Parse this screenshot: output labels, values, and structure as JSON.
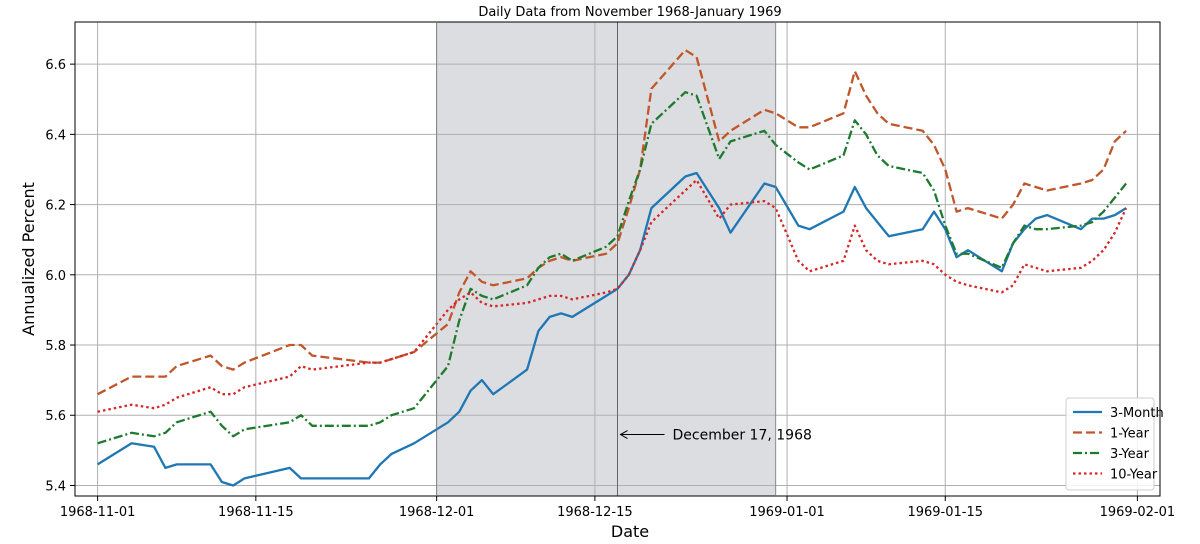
{
  "chart_data": {
    "type": "line",
    "title": "Daily Data from November 1968-January 1969",
    "xlabel": "Date",
    "ylabel": "Annualized Percent",
    "xlim": [
      "1968-10-30",
      "1969-02-03"
    ],
    "ylim": [
      5.37,
      6.72
    ],
    "x_ticks": [
      "1968-11-01",
      "1968-11-15",
      "1968-12-01",
      "1968-12-15",
      "1969-01-01",
      "1969-01-15",
      "1969-02-01"
    ],
    "y_ticks": [
      5.4,
      5.6,
      5.8,
      6.0,
      6.2,
      6.4,
      6.6
    ],
    "y_tick_labels": [
      "5.4",
      "5.6",
      "5.8",
      "6.0",
      "6.2",
      "6.4",
      "6.6"
    ],
    "grid": true,
    "legend_position": "lower-right",
    "shaded_region": {
      "start": "1968-12-01",
      "end": "1968-12-31",
      "color": "#dcdde0"
    },
    "vertical_line": {
      "date": "1968-12-17",
      "color": "#666666"
    },
    "annotation": {
      "text": "December 17, 1968",
      "date": "1968-12-17",
      "value": 5.545
    },
    "x": [
      "1968-11-01",
      "1968-11-04",
      "1968-11-06",
      "1968-11-07",
      "1968-11-08",
      "1968-11-11",
      "1968-11-12",
      "1968-11-13",
      "1968-11-14",
      "1968-11-18",
      "1968-11-19",
      "1968-11-20",
      "1968-11-25",
      "1968-11-26",
      "1968-11-27",
      "1968-11-29",
      "1968-12-02",
      "1968-12-03",
      "1968-12-04",
      "1968-12-05",
      "1968-12-06",
      "1968-12-09",
      "1968-12-10",
      "1968-12-11",
      "1968-12-12",
      "1968-12-13",
      "1968-12-16",
      "1968-12-17",
      "1968-12-18",
      "1968-12-19",
      "1968-12-20",
      "1968-12-23",
      "1968-12-24",
      "1968-12-26",
      "1968-12-27",
      "1968-12-30",
      "1968-12-31",
      "1969-01-02",
      "1969-01-03",
      "1969-01-06",
      "1969-01-07",
      "1969-01-08",
      "1969-01-09",
      "1969-01-10",
      "1969-01-13",
      "1969-01-14",
      "1969-01-15",
      "1969-01-16",
      "1969-01-17",
      "1969-01-20",
      "1969-01-21",
      "1969-01-22",
      "1969-01-23",
      "1969-01-24",
      "1969-01-27",
      "1969-01-28",
      "1969-01-29",
      "1969-01-30",
      "1969-01-31"
    ],
    "series": [
      {
        "name": "3-Month",
        "color": "#1f77b4",
        "dash": "solid",
        "values": [
          5.46,
          5.52,
          5.51,
          5.45,
          5.46,
          5.46,
          5.41,
          5.4,
          5.42,
          5.45,
          5.42,
          5.42,
          5.42,
          5.46,
          5.49,
          5.52,
          5.58,
          5.61,
          5.67,
          5.7,
          5.66,
          5.73,
          5.84,
          5.88,
          5.89,
          5.88,
          5.94,
          5.96,
          6.0,
          6.07,
          6.19,
          6.28,
          6.29,
          6.19,
          6.12,
          6.26,
          6.25,
          6.14,
          6.13,
          6.18,
          6.25,
          6.19,
          6.15,
          6.11,
          6.13,
          6.18,
          6.13,
          6.05,
          6.07,
          6.01,
          6.09,
          6.13,
          6.16,
          6.17,
          6.13,
          6.16,
          6.16,
          6.17,
          6.19
        ]
      },
      {
        "name": "1-Year",
        "color": "#c1562a",
        "dash": "dashed",
        "values": [
          5.66,
          5.71,
          5.71,
          5.71,
          5.74,
          5.77,
          5.74,
          5.73,
          5.75,
          5.8,
          5.8,
          5.77,
          5.75,
          5.75,
          5.76,
          5.78,
          5.86,
          5.95,
          6.01,
          5.98,
          5.97,
          5.99,
          6.02,
          6.04,
          6.05,
          6.04,
          6.06,
          6.09,
          6.19,
          6.3,
          6.53,
          6.64,
          6.62,
          6.38,
          6.41,
          6.47,
          6.46,
          6.42,
          6.42,
          6.46,
          6.58,
          6.51,
          6.46,
          6.43,
          6.41,
          6.37,
          6.3,
          6.18,
          6.19,
          6.16,
          6.2,
          6.26,
          6.25,
          6.24,
          6.26,
          6.27,
          6.3,
          6.38,
          6.41
        ]
      },
      {
        "name": "3-Year",
        "color": "#1e7a2e",
        "dash": "dashdot",
        "values": [
          5.52,
          5.55,
          5.54,
          5.55,
          5.58,
          5.61,
          5.57,
          5.54,
          5.56,
          5.58,
          5.6,
          5.57,
          5.57,
          5.58,
          5.6,
          5.62,
          5.74,
          5.87,
          5.96,
          5.94,
          5.93,
          5.97,
          6.02,
          6.05,
          6.06,
          6.04,
          6.08,
          6.11,
          6.21,
          6.3,
          6.43,
          6.52,
          6.51,
          6.33,
          6.38,
          6.41,
          6.37,
          6.32,
          6.3,
          6.34,
          6.44,
          6.4,
          6.34,
          6.31,
          6.29,
          6.24,
          6.14,
          6.06,
          6.06,
          6.02,
          6.09,
          6.14,
          6.13,
          6.13,
          6.14,
          6.15,
          6.18,
          6.22,
          6.26
        ]
      },
      {
        "name": "10-Year",
        "color": "#d62728",
        "dash": "dotted",
        "values": [
          5.61,
          5.63,
          5.62,
          5.63,
          5.65,
          5.68,
          5.66,
          5.66,
          5.68,
          5.71,
          5.74,
          5.73,
          5.75,
          5.75,
          5.76,
          5.78,
          5.9,
          5.93,
          5.95,
          5.92,
          5.91,
          5.92,
          5.93,
          5.94,
          5.94,
          5.93,
          5.95,
          5.96,
          6.0,
          6.07,
          6.15,
          6.24,
          6.27,
          6.16,
          6.2,
          6.21,
          6.19,
          6.04,
          6.01,
          6.04,
          6.14,
          6.07,
          6.04,
          6.03,
          6.04,
          6.03,
          6.0,
          5.98,
          5.97,
          5.95,
          5.97,
          6.03,
          6.02,
          6.01,
          6.02,
          6.04,
          6.07,
          6.12,
          6.19
        ]
      }
    ]
  }
}
